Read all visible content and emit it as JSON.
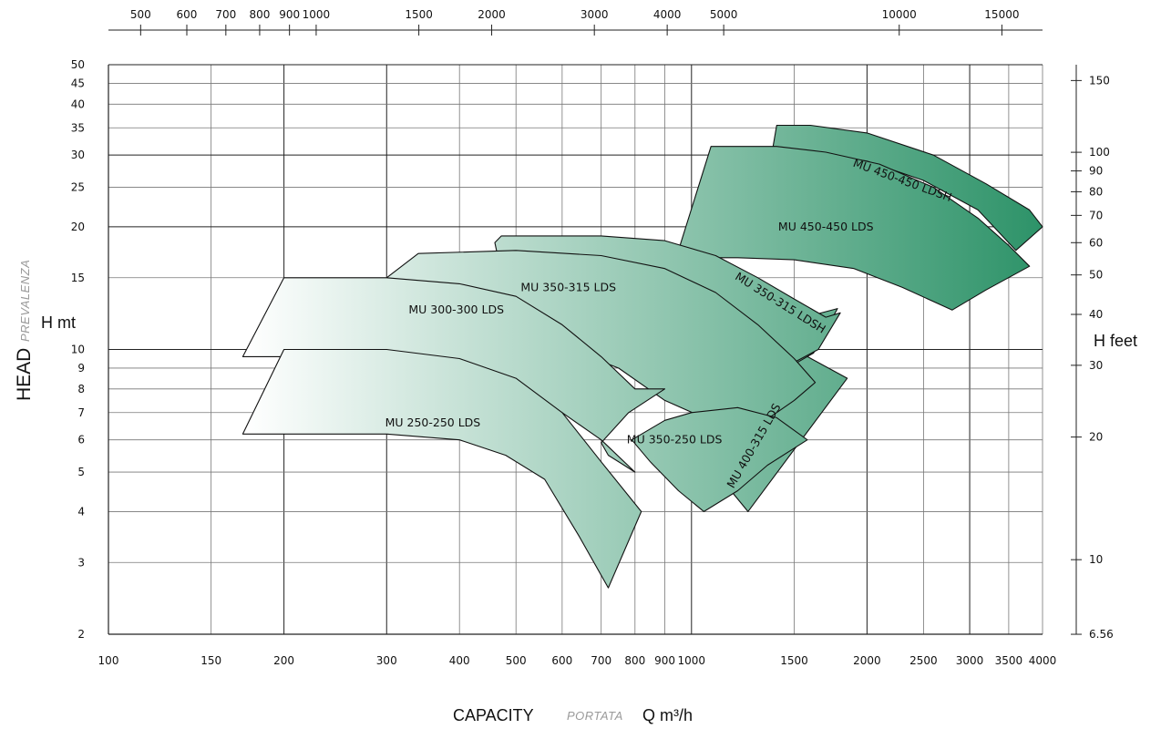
{
  "chart_data": {
    "type": "area",
    "x": {
      "label": "CAPACITY",
      "label_it": "PORTATA",
      "unit_label": "Q m³/h",
      "scale": "log",
      "range": [
        100,
        4000
      ],
      "ticks": [
        100,
        150,
        200,
        300,
        400,
        500,
        600,
        700,
        800,
        900,
        1000,
        1500,
        2000,
        2500,
        3000,
        3500,
        4000
      ]
    },
    "x_top": {
      "scale": "log",
      "ticks": [
        500,
        600,
        700,
        800,
        900,
        1000,
        1500,
        2000,
        3000,
        4000,
        5000,
        10000,
        15000
      ]
    },
    "y": {
      "label": "HEAD",
      "label_it": "PREVALENZA",
      "unit_label": "H mt",
      "scale": "log",
      "range": [
        2,
        50
      ],
      "ticks": [
        2,
        3,
        4,
        5,
        6,
        7,
        8,
        9,
        10,
        15,
        20,
        25,
        30,
        35,
        40,
        45,
        50
      ]
    },
    "y_right": {
      "unit_label": "H feet",
      "scale": "log",
      "ticks": [
        6.56,
        10,
        20,
        30,
        40,
        50,
        60,
        70,
        80,
        90,
        100,
        150
      ]
    },
    "grid": true,
    "series": [
      {
        "name": "MU 450-450 LDSH",
        "label_at": [
          2300,
          26
        ],
        "label_rot": 20,
        "polygon": [
          [
            1380,
            31.5
          ],
          [
            1400,
            35.5
          ],
          [
            1600,
            35.5
          ],
          [
            2000,
            34
          ],
          [
            2600,
            30
          ],
          [
            3200,
            25.5
          ],
          [
            3800,
            22
          ],
          [
            4000,
            20
          ],
          [
            3600,
            17.5
          ],
          [
            3100,
            22
          ],
          [
            2500,
            26
          ],
          [
            2000,
            29
          ]
        ]
      },
      {
        "name": "MU 450-450 LDS",
        "label_at": [
          1700,
          20
        ],
        "label_rot": 0,
        "polygon": [
          [
            950,
            17.5
          ],
          [
            1080,
            31.5
          ],
          [
            1400,
            31.5
          ],
          [
            1700,
            30.5
          ],
          [
            2100,
            28.5
          ],
          [
            2600,
            25
          ],
          [
            3100,
            21
          ],
          [
            3500,
            18
          ],
          [
            3800,
            16
          ],
          [
            3200,
            14
          ],
          [
            2800,
            12.5
          ],
          [
            2300,
            14.2
          ],
          [
            1900,
            15.8
          ],
          [
            1500,
            16.6
          ],
          [
            1200,
            16.8
          ],
          [
            1000,
            16.8
          ]
        ]
      },
      {
        "name": "MU 400-315 LDS",
        "label_at": [
          1280,
          5.8
        ],
        "label_rot": -60,
        "polygon": [
          [
            1050,
            6.3
          ],
          [
            1150,
            8.3
          ],
          [
            1300,
            9.4
          ],
          [
            1540,
            9.8
          ],
          [
            1850,
            8.5
          ],
          [
            1250,
            4
          ],
          [
            1100,
            5
          ]
        ]
      },
      {
        "name": "MU 350-315 LDSH",
        "label_at": [
          1420,
          13
        ],
        "label_rot": 32,
        "polygon": [
          [
            1050,
            9.8
          ],
          [
            1300,
            10.8
          ],
          [
            1480,
            11.5
          ],
          [
            1600,
            12.1
          ],
          [
            1780,
            12.6
          ],
          [
            1620,
            9.8
          ],
          [
            1500,
            9.2
          ],
          [
            1400,
            9.5
          ],
          [
            1250,
            9.8
          ]
        ]
      },
      {
        "name": "MU 350-315 LDSH",
        "label_at": [
          0,
          0
        ],
        "label_rot": 0,
        "polygon": [
          [
            460,
            18.3
          ],
          [
            472,
            19
          ],
          [
            700,
            19
          ],
          [
            900,
            18.5
          ],
          [
            1100,
            17
          ],
          [
            1300,
            15
          ],
          [
            1500,
            13.3
          ],
          [
            1700,
            12
          ],
          [
            1800,
            12.3
          ],
          [
            1650,
            10
          ],
          [
            1500,
            9.3
          ],
          [
            1300,
            9.5
          ],
          [
            1100,
            9.8
          ],
          [
            900,
            10.2
          ],
          [
            700,
            10.5
          ],
          [
            500,
            10.4
          ]
        ]
      },
      {
        "name": "MU 350-315 LDS",
        "label_at": [
          615,
          14.2
        ],
        "label_rot": 0,
        "polygon": [
          [
            300,
            15
          ],
          [
            340,
            17.2
          ],
          [
            500,
            17.5
          ],
          [
            700,
            17
          ],
          [
            900,
            15.8
          ],
          [
            1100,
            13.8
          ],
          [
            1300,
            11.5
          ],
          [
            1500,
            9.5
          ],
          [
            1630,
            8.3
          ],
          [
            1500,
            7.5
          ],
          [
            1300,
            6.5
          ],
          [
            1100,
            6.6
          ],
          [
            900,
            7.5
          ],
          [
            750,
            9
          ],
          [
            600,
            10.2
          ],
          [
            500,
            10.8
          ]
        ]
      },
      {
        "name": "MU 350-250 LDS",
        "label_at": [
          935,
          6
        ],
        "label_rot": 0,
        "polygon": [
          [
            900,
            6.7
          ],
          [
            1000,
            7
          ],
          [
            1200,
            7.2
          ],
          [
            1400,
            6.8
          ],
          [
            1580,
            6
          ],
          [
            1350,
            5.2
          ],
          [
            1200,
            4.5
          ],
          [
            1050,
            4
          ],
          [
            950,
            4.5
          ],
          [
            850,
            5.3
          ],
          [
            790,
            6
          ]
        ]
      },
      {
        "name": "MU 300-300 LDS",
        "label_at": [
          395,
          12.5
        ],
        "label_rot": 0,
        "polygon": [
          [
            170,
            9.6
          ],
          [
            200,
            15
          ],
          [
            300,
            15
          ],
          [
            400,
            14.5
          ],
          [
            500,
            13.5
          ],
          [
            600,
            11.5
          ],
          [
            700,
            9.6
          ],
          [
            800,
            8
          ],
          [
            900,
            8
          ],
          [
            780,
            7
          ],
          [
            700,
            5.9
          ],
          [
            720,
            5.5
          ],
          [
            800,
            5
          ],
          [
            700,
            6
          ],
          [
            600,
            7
          ],
          [
            500,
            8
          ],
          [
            400,
            9
          ],
          [
            300,
            9.6
          ]
        ]
      },
      {
        "name": "MU 250-250 LDS",
        "label_at": [
          360,
          6.6
        ],
        "label_rot": 0,
        "polygon": [
          [
            170,
            6.2
          ],
          [
            200,
            10
          ],
          [
            300,
            10
          ],
          [
            400,
            9.5
          ],
          [
            500,
            8.5
          ],
          [
            600,
            7
          ],
          [
            700,
            5.3
          ],
          [
            820,
            4
          ],
          [
            720,
            2.6
          ],
          [
            640,
            3.5
          ],
          [
            560,
            4.8
          ],
          [
            480,
            5.5
          ],
          [
            400,
            6
          ],
          [
            300,
            6.2
          ]
        ]
      }
    ]
  }
}
